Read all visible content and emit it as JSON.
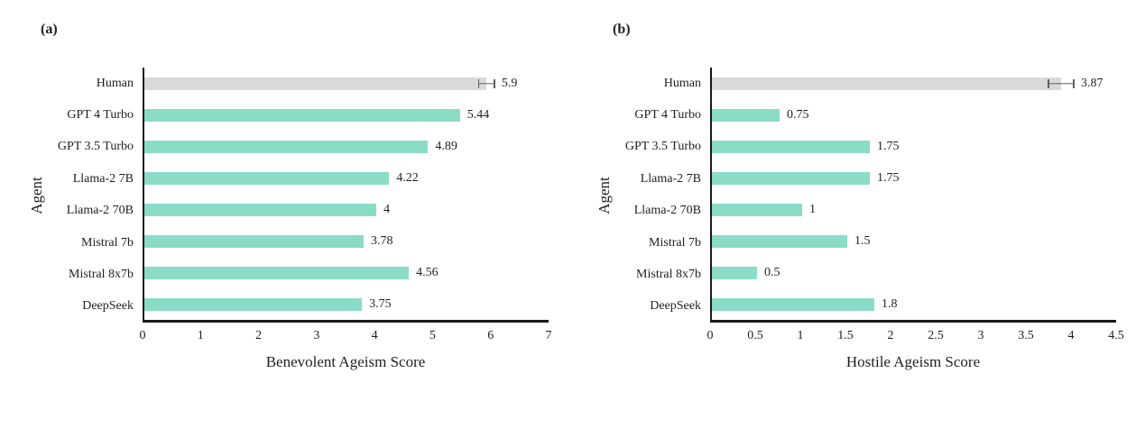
{
  "colors": {
    "model_bar": "#8ADCC7",
    "human_bar": "#D9D9D9",
    "error_bar": "#5f5f5f",
    "axis": "#1a1a1a",
    "text": "#1f1f1f",
    "background": "#ffffff"
  },
  "chart_data": [
    {
      "type": "bar",
      "orientation": "horizontal",
      "panel_label": "(a)",
      "ylabel": "Agent",
      "xlabel": "Benevolent Ageism Score",
      "categories": [
        "Human",
        "GPT 4 Turbo",
        "GPT 3.5 Turbo",
        "Llama-2 7B",
        "Llama-2 70B",
        "Mistral 7b",
        "Mistral 8x7b",
        "DeepSeek"
      ],
      "values": [
        5.9,
        5.44,
        4.89,
        4.22,
        4,
        3.78,
        4.56,
        3.75
      ],
      "value_labels": [
        "5.9",
        "5.44",
        "4.89",
        "4.22",
        "4",
        "3.78",
        "4.56",
        "3.75"
      ],
      "highlight_category": "Human",
      "error_bar": {
        "category": "Human",
        "value": 0.15
      },
      "xlim": [
        0,
        7
      ],
      "xticks": [
        0,
        1,
        2,
        3,
        4,
        5,
        6,
        7
      ],
      "xtick_labels": [
        "0",
        "1",
        "2",
        "3",
        "4",
        "5",
        "6",
        "7"
      ],
      "grid": false,
      "legend": false
    },
    {
      "type": "bar",
      "orientation": "horizontal",
      "panel_label": "(b)",
      "ylabel": "Agent",
      "xlabel": "Hostile Ageism Score",
      "categories": [
        "Human",
        "GPT 4 Turbo",
        "GPT 3.5 Turbo",
        "Llama-2 7B",
        "Llama-2 70B",
        "Mistral 7b",
        "Mistral 8x7b",
        "DeepSeek"
      ],
      "values": [
        3.87,
        0.75,
        1.75,
        1.75,
        1,
        1.5,
        0.5,
        1.8
      ],
      "value_labels": [
        "3.87",
        "0.75",
        "1.75",
        "1.75",
        "1",
        "1.5",
        "0.5",
        "1.8"
      ],
      "highlight_category": "Human",
      "error_bar": {
        "category": "Human",
        "value": 0.15
      },
      "xlim": [
        0,
        4.5
      ],
      "xticks": [
        0,
        0.5,
        1,
        1.5,
        2,
        2.5,
        3,
        3.5,
        4,
        4.5
      ],
      "xtick_labels": [
        "0",
        "0.5",
        "1",
        "1.5",
        "2",
        "2.5",
        "3",
        "3.5",
        "4",
        "4.5"
      ],
      "grid": false,
      "legend": false
    }
  ]
}
